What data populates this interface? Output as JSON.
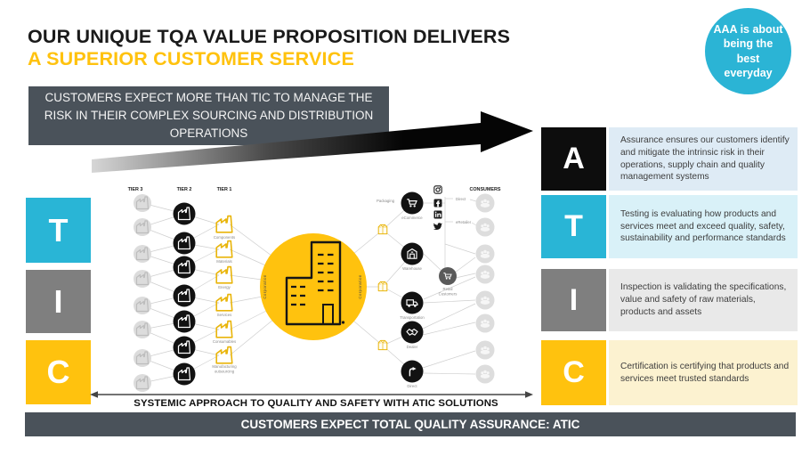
{
  "header": {
    "title_line1": "OUR UNIQUE TQA VALUE PROPOSITION DELIVERS",
    "title_line2": "A SUPERIOR CUSTOMER SERVICE",
    "badge_text": "AAA is about being the best everyday"
  },
  "top_banner": {
    "text": "CUSTOMERS EXPECT MORE THAN TIC TO MANAGE THE RISK IN THEIR COMPLEX SOURCING AND DISTRIBUTION OPERATIONS"
  },
  "left_letters": [
    {
      "label": "T",
      "color": "#29B5D6"
    },
    {
      "label": "I",
      "color": "#7F7F7F"
    },
    {
      "label": "C",
      "color": "#FFC20E"
    }
  ],
  "atic_rows": [
    {
      "letter": "A",
      "letter_bg": "#0D0D0D",
      "panel_bg": "#DEEBF5",
      "text": "Assurance ensures our customers identify and mitigate the intrinsic risk in their operations, supply chain and quality management systems"
    },
    {
      "letter": "T",
      "letter_bg": "#29B5D6",
      "panel_bg": "#D9F1F8",
      "text": "Testing is evaluating how products and services meet and exceed quality, safety, sustainability and performance standards"
    },
    {
      "letter": "I",
      "letter_bg": "#7F7F7F",
      "panel_bg": "#E9E9E9",
      "text": "Inspection is validating the specifications, value and safety of raw materials, products and assets"
    },
    {
      "letter": "C",
      "letter_bg": "#FFC20E",
      "panel_bg": "#FCF2D0",
      "text": "Certification is certifying that products and services meet trusted standards"
    }
  ],
  "diagram": {
    "tier_headers": [
      "TIER 3",
      "TIER 2",
      "TIER 1"
    ],
    "consumers_header": "CONSUMERS",
    "tier1_labels": [
      "Components",
      "Materials",
      "Energy",
      "Services",
      "Consumables",
      "Manufacturing outsourcing"
    ],
    "corporation_left": "Corporation",
    "corporation_right": "Corporation",
    "packaging_label": "Packaging",
    "channel_labels": [
      "eCommerce",
      "Warehouse",
      "Transportation",
      "Dealer",
      "Direct"
    ],
    "online_channel_labels": [
      "Direct",
      "eRetailer"
    ],
    "retail_label": "Retail Customers",
    "social_icons": [
      "instagram-icon",
      "facebook-icon",
      "linkedin-icon",
      "twitter-icon"
    ]
  },
  "bottom": {
    "systemic_label": "SYSTEMIC APPROACH TO QUALITY AND SAFETY WITH ATIC SOLUTIONS",
    "banner_text": "CUSTOMERS EXPECT TOTAL QUALITY ASSURANCE: ATIC"
  },
  "colors": {
    "accent_yellow": "#FFC20E",
    "teal": "#29B5D6",
    "banner_gray": "#4A525A",
    "box_gray": "#7F7F7F",
    "box_black": "#0D0D0D",
    "panel_blue": "#DEEBF5",
    "panel_cyan": "#D9F1F8",
    "panel_gray": "#E9E9E9",
    "panel_yellow": "#FCF2D0"
  }
}
